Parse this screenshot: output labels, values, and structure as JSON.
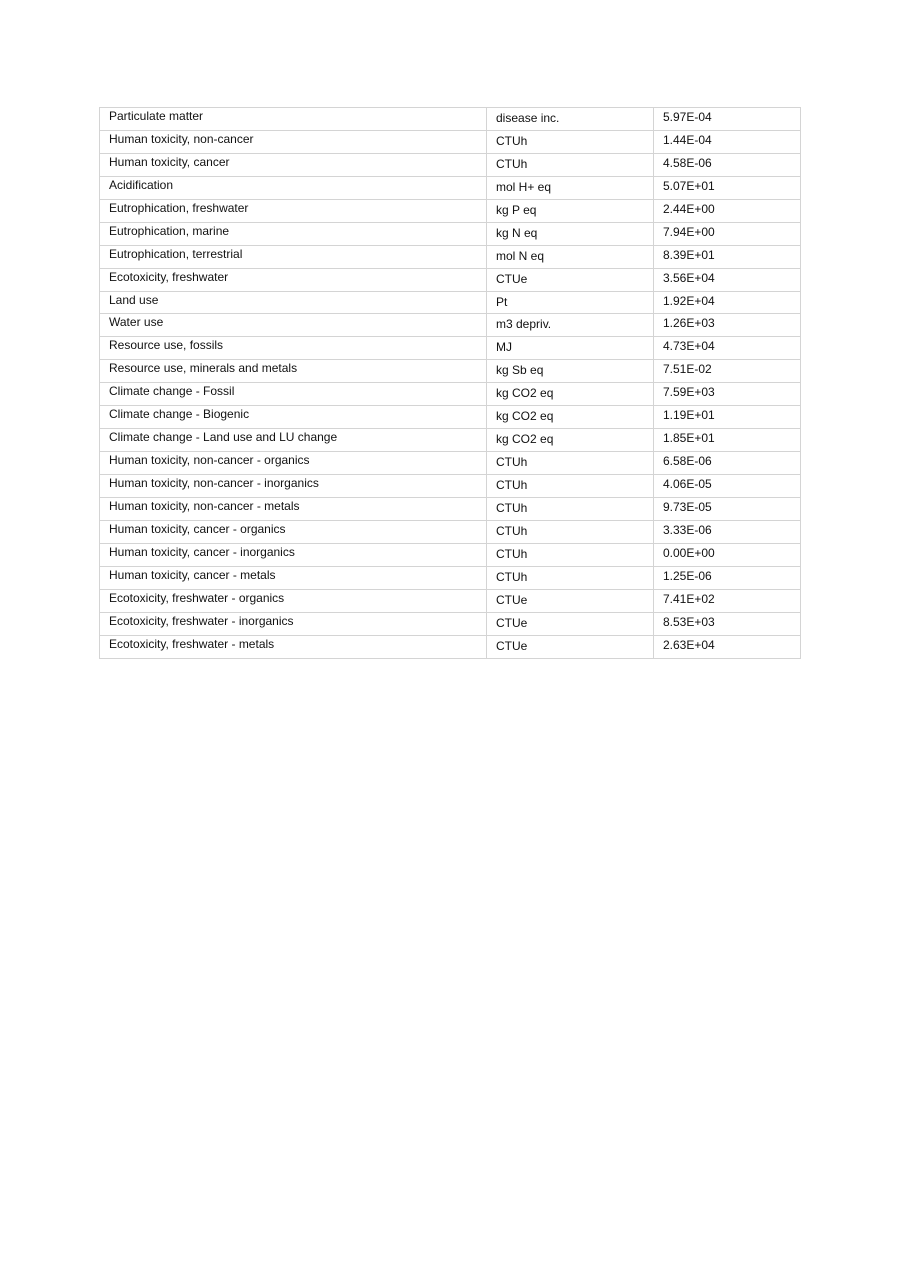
{
  "table": {
    "rows": [
      {
        "category": "Particulate matter",
        "unit": "disease inc.",
        "value": "5.97E-04"
      },
      {
        "category": "Human toxicity, non-cancer",
        "unit": "CTUh",
        "value": "1.44E-04"
      },
      {
        "category": "Human toxicity, cancer",
        "unit": "CTUh",
        "value": "4.58E-06"
      },
      {
        "category": "Acidification",
        "unit": "mol H+ eq",
        "value": "5.07E+01"
      },
      {
        "category": "Eutrophication, freshwater",
        "unit": "kg P eq",
        "value": "2.44E+00"
      },
      {
        "category": "Eutrophication, marine",
        "unit": "kg N eq",
        "value": "7.94E+00"
      },
      {
        "category": "Eutrophication, terrestrial",
        "unit": "mol N eq",
        "value": "8.39E+01"
      },
      {
        "category": "Ecotoxicity, freshwater",
        "unit": "CTUe",
        "value": "3.56E+04"
      },
      {
        "category": "Land use",
        "unit": "Pt",
        "value": "1.92E+04"
      },
      {
        "category": "Water use",
        "unit": "m3 depriv.",
        "value": "1.26E+03"
      },
      {
        "category": "Resource use, fossils",
        "unit": "MJ",
        "value": "4.73E+04"
      },
      {
        "category": "Resource use, minerals and metals",
        "unit": "kg Sb eq",
        "value": "7.51E-02"
      },
      {
        "category": "Climate change - Fossil",
        "unit": "kg CO2 eq",
        "value": "7.59E+03"
      },
      {
        "category": "Climate change - Biogenic",
        "unit": "kg CO2 eq",
        "value": "1.19E+01"
      },
      {
        "category": "Climate change - Land use and LU change",
        "unit": "kg CO2 eq",
        "value": "1.85E+01"
      },
      {
        "category": "Human toxicity, non-cancer - organics",
        "unit": "CTUh",
        "value": "6.58E-06"
      },
      {
        "category": "Human toxicity, non-cancer - inorganics",
        "unit": "CTUh",
        "value": "4.06E-05"
      },
      {
        "category": "Human toxicity, non-cancer - metals",
        "unit": "CTUh",
        "value": "9.73E-05"
      },
      {
        "category": "Human toxicity, cancer - organics",
        "unit": "CTUh",
        "value": "3.33E-06"
      },
      {
        "category": "Human toxicity, cancer - inorganics",
        "unit": "CTUh",
        "value": "0.00E+00"
      },
      {
        "category": "Human toxicity, cancer - metals",
        "unit": "CTUh",
        "value": "1.25E-06"
      },
      {
        "category": "Ecotoxicity, freshwater - organics",
        "unit": "CTUe",
        "value": "7.41E+02"
      },
      {
        "category": "Ecotoxicity, freshwater - inorganics",
        "unit": "CTUe",
        "value": "8.53E+03"
      },
      {
        "category": "Ecotoxicity, freshwater - metals",
        "unit": "CTUe",
        "value": "2.63E+04"
      }
    ]
  }
}
